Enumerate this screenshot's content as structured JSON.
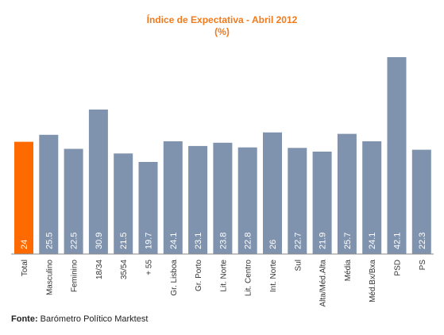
{
  "colors": {
    "title": "#f07a1c",
    "highlight": "#ff6a00",
    "bar": "#7f93ae",
    "axis": "#8a8a8a"
  },
  "chart_data": {
    "type": "bar",
    "title": "Índice de Expectativa - Abril 2012",
    "subtitle": "(%)",
    "xlabel": "",
    "ylabel": "",
    "ylim": [
      0,
      45
    ],
    "grid": false,
    "legend": "none",
    "highlight_index": 0,
    "categories": [
      "Total",
      "Masculino",
      "Feminino",
      "18/34",
      "35/54",
      "+ 55",
      "Gr. Lisboa",
      "Gr. Porto",
      "Lit. Norte",
      "Lit. Centro",
      "Int. Norte",
      "Sul",
      "Alta/Méd.Alta",
      "Média",
      "Méd.Bx/Bxa",
      "PSD",
      "PS"
    ],
    "values": [
      24,
      25.5,
      22.5,
      30.9,
      21.5,
      19.7,
      24.1,
      23.1,
      23.8,
      22.8,
      26,
      22.7,
      21.9,
      25.7,
      24.1,
      42.1,
      22.3
    ],
    "value_labels": [
      "24",
      "25.5",
      "22.5",
      "30.9",
      "21.5",
      "19.7",
      "24.1",
      "23.1",
      "23.8",
      "22.8",
      "26",
      "22.7",
      "21.9",
      "25.7",
      "24.1",
      "42.1",
      "22.3"
    ]
  },
  "source": {
    "prefix": "Fonte:",
    "text": " Barómetro Político Marktest"
  }
}
